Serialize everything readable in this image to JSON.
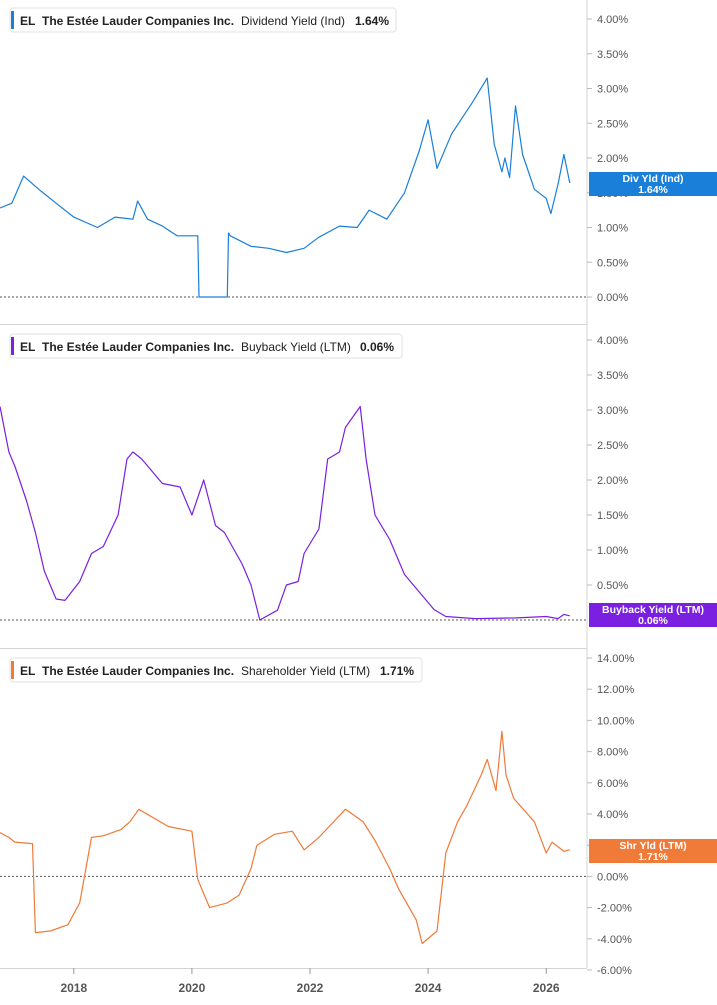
{
  "ticker": "EL",
  "company": "The Estée Lauder Companies Inc.",
  "x_axis": {
    "ticks": [
      "2018",
      "2020",
      "2022",
      "2024",
      "2026"
    ]
  },
  "chart_data": [
    {
      "type": "line",
      "metric": "Dividend Yield (Ind)",
      "current_value": "1.64%",
      "marker_label": "Div Yld (Ind)",
      "color": "#1a7fd9",
      "ylim": [
        0,
        4.2
      ],
      "y_ticks": [
        "4.00%",
        "3.50%",
        "3.00%",
        "2.50%",
        "2.00%",
        "1.50%",
        "1.00%",
        "0.50%",
        "0.00%"
      ],
      "y_tick_values": [
        4,
        3.5,
        3,
        2.5,
        2,
        1.5,
        1,
        0.5,
        0
      ],
      "x": [
        2016.75,
        2016.95,
        2017.15,
        2017.45,
        2017.7,
        2018.0,
        2018.4,
        2018.7,
        2019.0,
        2019.08,
        2019.25,
        2019.5,
        2019.75,
        2020.1,
        2020.12,
        2020.18,
        2020.6,
        2020.62,
        2020.65,
        2021.0,
        2021.3,
        2021.6,
        2021.9,
        2022.15,
        2022.5,
        2022.8,
        2023.0,
        2023.3,
        2023.6,
        2023.85,
        2024.0,
        2024.15,
        2024.4,
        2024.75,
        2025.0,
        2025.12,
        2025.25,
        2025.3,
        2025.38,
        2025.48,
        2025.6,
        2025.8,
        2026.0,
        2026.08,
        2026.2,
        2026.3,
        2026.4
      ],
      "values": [
        1.28,
        1.35,
        1.74,
        1.52,
        1.35,
        1.15,
        1.0,
        1.15,
        1.12,
        1.38,
        1.12,
        1.02,
        0.88,
        0.88,
        0.0,
        0.0,
        0.0,
        0.92,
        0.88,
        0.73,
        0.7,
        0.64,
        0.7,
        0.86,
        1.02,
        1.0,
        1.25,
        1.12,
        1.5,
        2.1,
        2.55,
        1.85,
        2.35,
        2.8,
        3.15,
        2.2,
        1.8,
        2.0,
        1.72,
        2.75,
        2.05,
        1.55,
        1.42,
        1.2,
        1.62,
        2.05,
        1.64
      ]
    },
    {
      "type": "line",
      "metric": "Buyback Yield (LTM)",
      "current_value": "0.06%",
      "marker_label": "Buyback Yield (LTM)",
      "color": "#7b1fe0",
      "ylim": [
        0,
        4.2
      ],
      "y_ticks": [
        "4.00%",
        "3.50%",
        "3.00%",
        "2.50%",
        "2.00%",
        "1.50%",
        "1.00%",
        "0.50%"
      ],
      "y_tick_values": [
        4,
        3.5,
        3,
        2.5,
        2,
        1.5,
        1,
        0.5
      ],
      "x": [
        2016.75,
        2016.9,
        2017.0,
        2017.2,
        2017.35,
        2017.5,
        2017.7,
        2017.85,
        2018.1,
        2018.3,
        2018.5,
        2018.75,
        2018.9,
        2019.0,
        2019.15,
        2019.5,
        2019.8,
        2020.0,
        2020.2,
        2020.4,
        2020.55,
        2020.85,
        2021.0,
        2021.15,
        2021.45,
        2021.6,
        2021.8,
        2021.9,
        2022.15,
        2022.3,
        2022.5,
        2022.6,
        2022.85,
        2022.95,
        2023.1,
        2023.35,
        2023.6,
        2023.9,
        2024.1,
        2024.3,
        2024.8,
        2025.5,
        2026.0,
        2026.2,
        2026.3,
        2026.4
      ],
      "values": [
        3.05,
        2.4,
        2.2,
        1.7,
        1.25,
        0.7,
        0.3,
        0.28,
        0.55,
        0.95,
        1.05,
        1.5,
        2.3,
        2.4,
        2.3,
        1.95,
        1.9,
        1.5,
        2.0,
        1.35,
        1.25,
        0.8,
        0.5,
        0.0,
        0.14,
        0.5,
        0.55,
        0.95,
        1.3,
        2.3,
        2.4,
        2.75,
        3.05,
        2.3,
        1.5,
        1.15,
        0.65,
        0.35,
        0.15,
        0.05,
        0.02,
        0.03,
        0.05,
        0.02,
        0.08,
        0.06
      ]
    },
    {
      "type": "line",
      "metric": "Shareholder Yield (LTM)",
      "current_value": "1.71%",
      "marker_label": "Shr Yld (LTM)",
      "color": "#f07a38",
      "ylim": [
        -6,
        14
      ],
      "y_ticks": [
        "14.00%",
        "12.00%",
        "10.00%",
        "8.00%",
        "6.00%",
        "4.00%",
        "2.00%",
        "0.00%",
        "-2.00%",
        "-4.00%",
        "-6.00%"
      ],
      "y_tick_values": [
        14,
        12,
        10,
        8,
        6,
        4,
        2,
        0,
        -2,
        -4,
        -6
      ],
      "x": [
        2016.75,
        2016.9,
        2017.0,
        2017.3,
        2017.35,
        2017.6,
        2017.9,
        2018.1,
        2018.3,
        2018.5,
        2018.8,
        2018.95,
        2019.1,
        2019.6,
        2020.0,
        2020.1,
        2020.3,
        2020.6,
        2020.8,
        2021.0,
        2021.1,
        2021.4,
        2021.7,
        2021.9,
        2022.15,
        2022.35,
        2022.6,
        2022.9,
        2023.1,
        2023.35,
        2023.5,
        2023.8,
        2023.9,
        2024.15,
        2024.3,
        2024.5,
        2024.65,
        2024.9,
        2025.0,
        2025.15,
        2025.25,
        2025.32,
        2025.45,
        2025.8,
        2026.0,
        2026.1,
        2026.3,
        2026.4
      ],
      "values": [
        2.8,
        2.5,
        2.2,
        2.1,
        -3.6,
        -3.5,
        -3.1,
        -1.7,
        2.5,
        2.6,
        3.0,
        3.5,
        4.3,
        3.2,
        2.9,
        -0.2,
        -2.0,
        -1.7,
        -1.2,
        0.5,
        2.0,
        2.7,
        2.9,
        1.7,
        2.5,
        3.3,
        4.3,
        3.5,
        2.3,
        0.5,
        -0.8,
        -2.8,
        -4.3,
        -3.5,
        1.5,
        3.5,
        4.5,
        6.5,
        7.5,
        5.5,
        9.3,
        6.5,
        5.0,
        3.5,
        1.5,
        2.2,
        1.6,
        1.71
      ]
    }
  ]
}
